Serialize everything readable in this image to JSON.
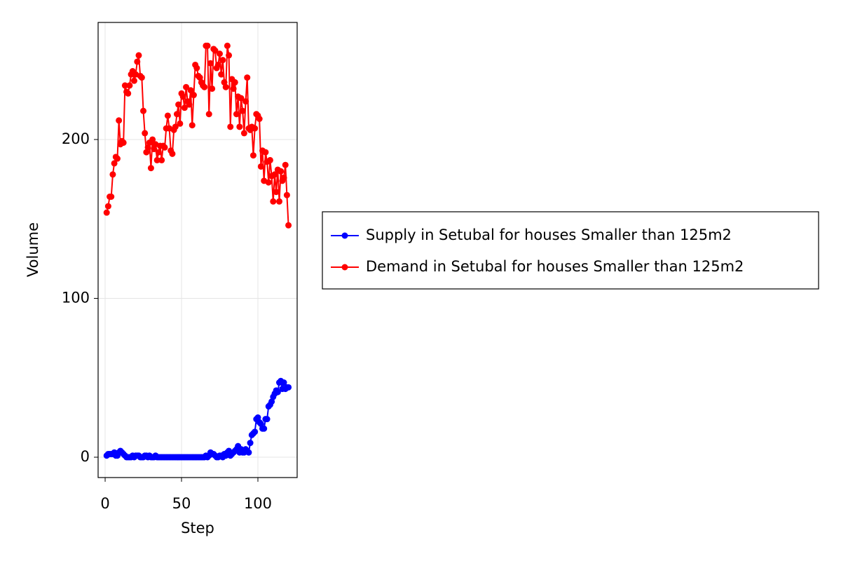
{
  "chart_data": {
    "type": "line",
    "xlabel": "Step",
    "ylabel": "Volume",
    "x": [
      1,
      2,
      3,
      4,
      5,
      6,
      7,
      8,
      9,
      10,
      11,
      12,
      13,
      14,
      15,
      16,
      17,
      18,
      19,
      20,
      21,
      22,
      23,
      24,
      25,
      26,
      27,
      28,
      29,
      30,
      31,
      32,
      33,
      34,
      35,
      36,
      37,
      38,
      39,
      40,
      41,
      42,
      43,
      44,
      45,
      46,
      47,
      48,
      49,
      50,
      51,
      52,
      53,
      54,
      55,
      56,
      57,
      58,
      59,
      60,
      61,
      62,
      63,
      64,
      65,
      66,
      67,
      68,
      69,
      70,
      71,
      72,
      73,
      74,
      75,
      76,
      77,
      78,
      79,
      80,
      81,
      82,
      83,
      84,
      85,
      86,
      87,
      88,
      89,
      90,
      91,
      92,
      93,
      94,
      95,
      96,
      97,
      98,
      99,
      100,
      101,
      102,
      103,
      104,
      105,
      106,
      107,
      108,
      109,
      110,
      111,
      112,
      113,
      114,
      115,
      116,
      117,
      118,
      119,
      120
    ],
    "series": [
      {
        "name": "Supply in Setubal for houses Smaller than 125m2",
        "color": "#0000ff",
        "values": [
          1,
          2,
          2,
          2,
          2,
          3,
          1,
          1,
          3,
          4,
          3,
          2,
          1,
          0,
          0,
          0,
          0,
          1,
          0,
          1,
          1,
          1,
          0,
          0,
          0,
          1,
          1,
          0,
          1,
          0,
          0,
          0,
          1,
          0,
          0,
          0,
          0,
          0,
          0,
          0,
          0,
          0,
          0,
          0,
          0,
          0,
          0,
          0,
          0,
          0,
          0,
          0,
          0,
          0,
          0,
          0,
          0,
          0,
          0,
          0,
          0,
          0,
          0,
          0,
          0,
          1,
          0,
          1,
          3,
          2,
          2,
          1,
          0,
          0,
          1,
          1,
          0,
          2,
          1,
          3,
          4,
          1,
          2,
          3,
          4,
          5,
          7,
          3,
          5,
          3,
          3,
          5,
          4,
          3,
          9,
          14,
          15,
          16,
          24,
          25,
          22,
          21,
          18,
          18,
          24,
          24,
          32,
          33,
          35,
          38,
          40,
          42,
          41,
          47,
          48,
          43,
          47,
          43,
          44,
          44
        ]
      },
      {
        "name": "Demand in Setubal for houses Smaller than 125m2",
        "color": "#ff0000",
        "values": [
          154,
          158,
          164,
          164,
          178,
          185,
          189,
          188,
          212,
          197,
          199,
          198,
          234,
          230,
          229,
          234,
          241,
          243,
          237,
          241,
          249,
          253,
          240,
          239,
          218,
          204,
          192,
          195,
          198,
          182,
          200,
          194,
          197,
          187,
          192,
          196,
          187,
          196,
          195,
          207,
          215,
          207,
          193,
          191,
          206,
          208,
          216,
          222,
          210,
          229,
          227,
          220,
          233,
          224,
          222,
          231,
          209,
          228,
          247,
          245,
          240,
          239,
          236,
          234,
          233,
          259,
          259,
          216,
          248,
          232,
          257,
          256,
          245,
          247,
          254,
          241,
          250,
          236,
          233,
          259,
          253,
          208,
          238,
          232,
          236,
          216,
          227,
          208,
          226,
          218,
          204,
          224,
          239,
          207,
          206,
          208,
          190,
          207,
          216,
          215,
          213,
          183,
          193,
          174,
          192,
          186,
          173,
          187,
          177,
          161,
          178,
          167,
          181,
          161,
          180,
          174,
          176,
          184,
          165,
          146
        ]
      }
    ],
    "xlim": [
      -4.6,
      125.7
    ],
    "xticks": [
      0,
      50,
      100
    ],
    "ylim": [
      -12.8,
      273.7
    ],
    "yticks": [
      0,
      100,
      200
    ],
    "grid": true,
    "legend": "right"
  }
}
